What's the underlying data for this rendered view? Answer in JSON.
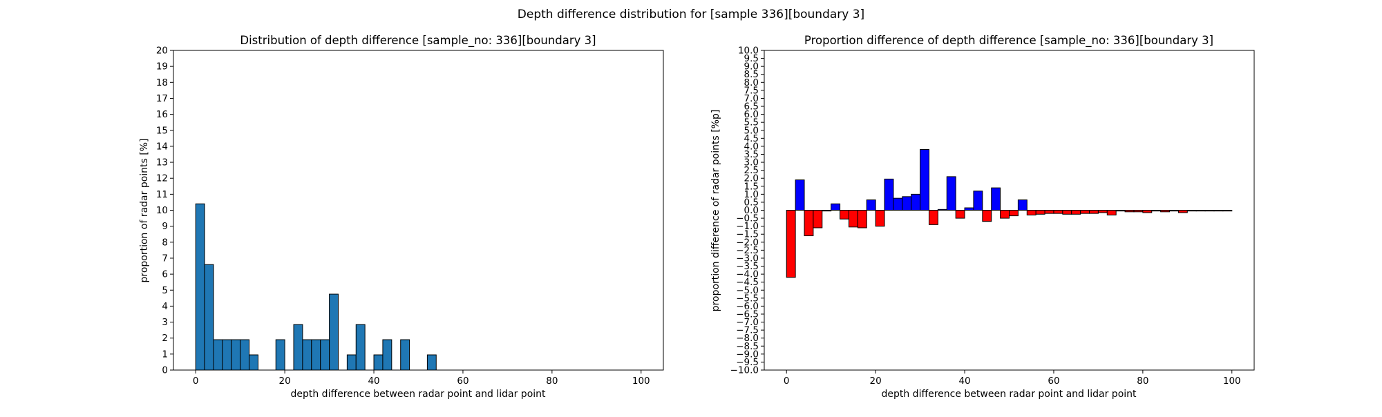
{
  "suptitle": "Depth difference distribution for [sample 336][boundary 3]",
  "chart_data": [
    {
      "type": "bar",
      "title": "Distribution of depth difference [sample_no: 336][boundary 3]",
      "xlabel": "depth difference between radar point and lidar point",
      "ylabel": "proportion of radar points [%]",
      "xlim": [
        -5,
        105
      ],
      "ylim": [
        0,
        20
      ],
      "x_ticks": [
        0,
        20,
        40,
        60,
        80,
        100
      ],
      "y_ticks": [
        0,
        1,
        2,
        3,
        4,
        5,
        6,
        7,
        8,
        9,
        10,
        11,
        12,
        13,
        14,
        15,
        16,
        17,
        18,
        19,
        20
      ],
      "bin_width": 2,
      "bar_color": "#1f77b4",
      "edge_color": "#000000",
      "bin_starts": [
        0,
        2,
        4,
        6,
        8,
        10,
        12,
        14,
        16,
        18,
        20,
        22,
        24,
        26,
        28,
        30,
        32,
        34,
        36,
        38,
        40,
        42,
        44,
        46,
        48,
        50,
        52,
        54,
        56,
        58,
        60,
        62,
        64,
        66,
        68,
        70,
        72,
        74,
        76,
        78,
        80,
        82,
        84,
        86,
        88,
        90,
        92,
        94,
        96,
        98
      ],
      "values": [
        10.4,
        6.6,
        1.9,
        1.9,
        1.9,
        1.9,
        0.95,
        0,
        0,
        1.9,
        0,
        2.85,
        1.9,
        1.9,
        1.9,
        4.75,
        0,
        0.95,
        2.85,
        0,
        0.95,
        1.9,
        0,
        1.9,
        0,
        0,
        0.95,
        0,
        0,
        0,
        0,
        0,
        0,
        0,
        0,
        0,
        0,
        0,
        0,
        0,
        0,
        0,
        0,
        0,
        0,
        0,
        0,
        0,
        0,
        0
      ]
    },
    {
      "type": "bar",
      "title": "Proportion difference of depth difference [sample_no: 336][boundary 3]",
      "xlabel": "depth difference between radar point and lidar point",
      "ylabel": "proportion difference of radar points [%p]",
      "xlim": [
        -5,
        105
      ],
      "ylim": [
        -10,
        10
      ],
      "x_ticks": [
        0,
        20,
        40,
        60,
        80,
        100
      ],
      "y_ticks": [
        -10.0,
        -9.5,
        -9.0,
        -8.5,
        -8.0,
        -7.5,
        -7.0,
        -6.5,
        -6.0,
        -5.5,
        -5.0,
        -4.5,
        -4.0,
        -3.5,
        -3.0,
        -2.5,
        -2.0,
        -1.5,
        -1.0,
        -0.5,
        0.0,
        0.5,
        1.0,
        1.5,
        2.0,
        2.5,
        3.0,
        3.5,
        4.0,
        4.5,
        5.0,
        5.5,
        6.0,
        6.5,
        7.0,
        7.5,
        8.0,
        8.5,
        9.0,
        9.5,
        10.0
      ],
      "bin_width": 2,
      "positive_color": "#0000ff",
      "negative_color": "#ff0000",
      "edge_color": "#000000",
      "bin_starts": [
        0,
        2,
        4,
        6,
        8,
        10,
        12,
        14,
        16,
        18,
        20,
        22,
        24,
        26,
        28,
        30,
        32,
        34,
        36,
        38,
        40,
        42,
        44,
        46,
        48,
        50,
        52,
        54,
        56,
        58,
        60,
        62,
        64,
        66,
        68,
        70,
        72,
        74,
        76,
        78,
        80,
        82,
        84,
        86,
        88,
        90,
        92,
        94,
        96,
        98
      ],
      "values": [
        -4.2,
        1.9,
        -1.6,
        -1.1,
        -0.05,
        0.4,
        -0.55,
        -1.05,
        -1.1,
        0.65,
        -1.0,
        1.95,
        0.75,
        0.85,
        1.0,
        3.8,
        -0.9,
        0.05,
        2.1,
        -0.5,
        0.15,
        1.2,
        -0.7,
        1.4,
        -0.5,
        -0.35,
        0.65,
        -0.3,
        -0.25,
        -0.2,
        -0.2,
        -0.25,
        -0.25,
        -0.2,
        -0.2,
        -0.15,
        -0.3,
        -0.05,
        -0.1,
        -0.1,
        -0.15,
        -0.05,
        -0.1,
        -0.05,
        -0.15,
        -0.05,
        -0.05,
        -0.05,
        -0.05,
        -0.05
      ]
    }
  ]
}
